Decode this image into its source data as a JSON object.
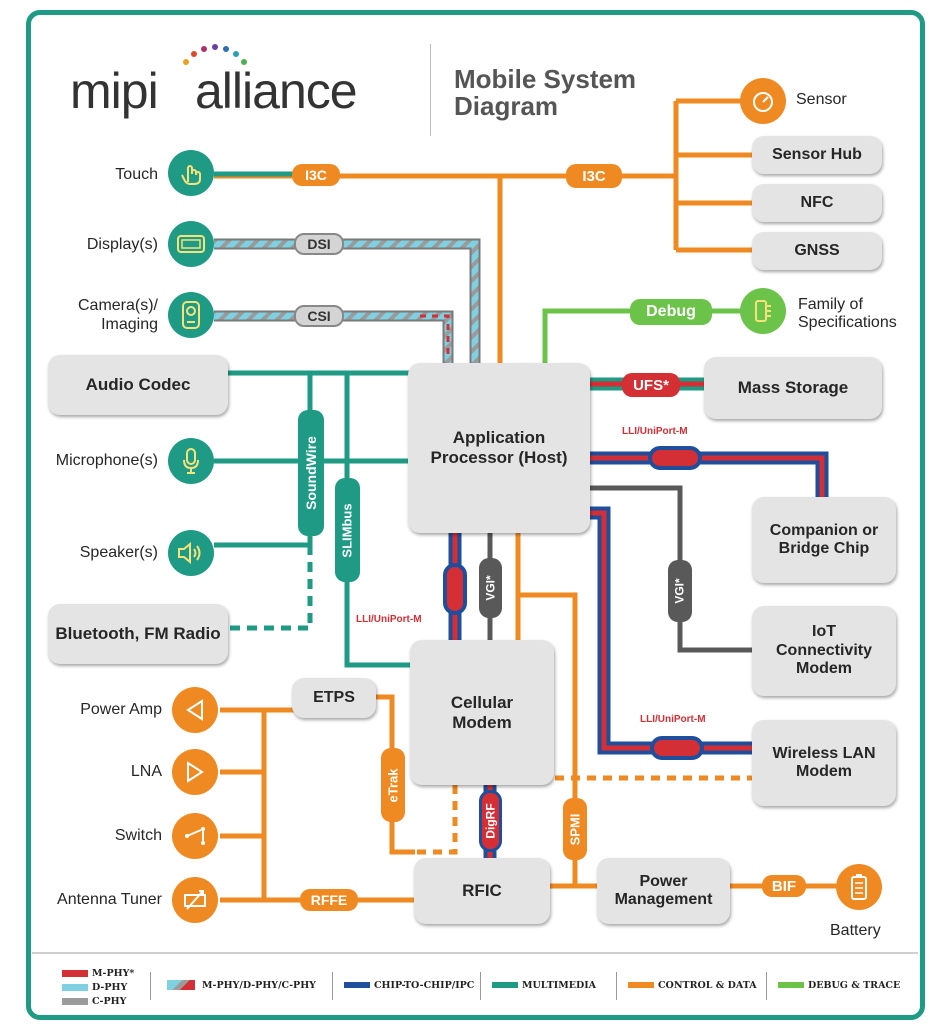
{
  "logo": {
    "text_left": "mipi",
    "text_right": "alliance"
  },
  "title": {
    "line1": "Mobile System",
    "line2": "Diagram"
  },
  "colors": {
    "mphy": "#d32f35",
    "dphy": "#7fd0e0",
    "cphy": "#9b9b9b",
    "chip_to_chip": "#1f4e9c",
    "multimedia": "#1e9a85",
    "control_data": "#ef8a22",
    "debug_trace": "#6cc34a",
    "vgi": "#595959"
  },
  "left_peripherals": [
    "Touch",
    "Display(s)",
    "Camera(s)/ Imaging",
    "Microphone(s)",
    "Speaker(s)"
  ],
  "rf_peripherals": [
    "Power Amp",
    "LNA",
    "Switch",
    "Antenna Tuner"
  ],
  "boxes": {
    "audio_codec": "Audio Codec",
    "bluetooth": "Bluetooth, FM Radio",
    "application_processor": "Application Processor (Host)",
    "cellular_modem": "Cellular Modem",
    "etps": "ETPS",
    "rfic": "RFIC",
    "power_management": "Power Management",
    "sensor_hub": "Sensor Hub",
    "nfc": "NFC",
    "gnss": "GNSS",
    "mass_storage": "Mass Storage",
    "companion_chip": "Companion or Bridge Chip",
    "iot_modem": "IoT Connectivity Modem",
    "wlan_modem": "Wireless LAN Modem"
  },
  "right_labels": {
    "sensor": "Sensor",
    "family": "Family of Specifications",
    "battery": "Battery"
  },
  "interfaces": {
    "i3c_left": "I3C",
    "i3c_right": "I3C",
    "dsi": "DSI",
    "csi": "CSI",
    "debug": "Debug",
    "ufs": "UFS*",
    "lli_companion": "LLI/UniPort-M",
    "lli_cellular": "LLI/UniPort-M",
    "lli_wlan": "LLI/UniPort-M",
    "vgi_center": "VGI*",
    "vgi_right": "VGI*",
    "soundwire": "SoundWire",
    "slimbus": "SLIMbus",
    "etrak": "eTrak",
    "digrf": "DigRF",
    "spmi": "SPMI",
    "rffe": "RFFE",
    "bif": "BIF"
  },
  "legend": {
    "mphy": "M-PHY*",
    "dphy": "D-PHY",
    "cphy": "C-PHY",
    "combined": "M-PHY/D-PHY/C-PHY",
    "chip_to_chip": "CHIP-TO-CHIP/IPC",
    "multimedia": "MULTIMEDIA",
    "control_data": "CONTROL & DATA",
    "debug_trace": "DEBUG & TRACE"
  }
}
